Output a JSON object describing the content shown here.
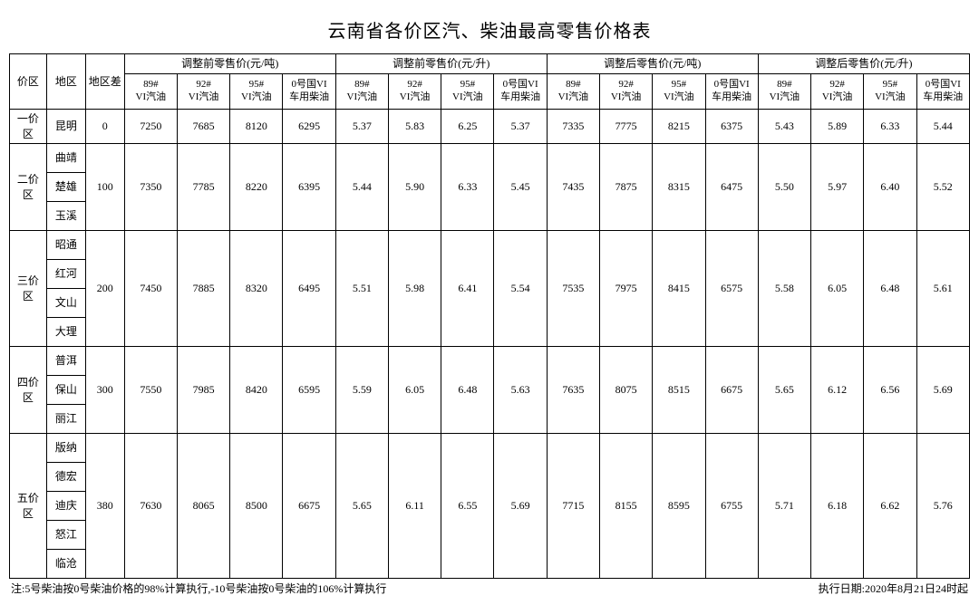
{
  "title": "云南省各价区汽、柴油最高零售价格表",
  "head": {
    "zone": "价区",
    "region": "地区",
    "diff": "地区差",
    "group_before_ton": "调整前零售价(元/吨)",
    "group_before_lit": "调整前零售价(元/升)",
    "group_after_ton": "调整后零售价(元/吨)",
    "group_after_lit": "调整后零售价(元/升)",
    "sub89": "89#\nVI汽油",
    "sub92": "92#\nVI汽油",
    "sub95": "95#\nVI汽油",
    "sub0": "0号国VI\n车用柴油"
  },
  "zones": [
    {
      "name": "一价区",
      "regions": [
        "昆明"
      ],
      "diff": "0",
      "vals": [
        "7250",
        "7685",
        "8120",
        "6295",
        "5.37",
        "5.83",
        "6.25",
        "5.37",
        "7335",
        "7775",
        "8215",
        "6375",
        "5.43",
        "5.89",
        "6.33",
        "5.44"
      ]
    },
    {
      "name": "二价区",
      "regions": [
        "曲靖",
        "楚雄",
        "玉溪"
      ],
      "diff": "100",
      "vals": [
        "7350",
        "7785",
        "8220",
        "6395",
        "5.44",
        "5.90",
        "6.33",
        "5.45",
        "7435",
        "7875",
        "8315",
        "6475",
        "5.50",
        "5.97",
        "6.40",
        "5.52"
      ]
    },
    {
      "name": "三价区",
      "regions": [
        "昭通",
        "红河",
        "文山",
        "大理"
      ],
      "diff": "200",
      "vals": [
        "7450",
        "7885",
        "8320",
        "6495",
        "5.51",
        "5.98",
        "6.41",
        "5.54",
        "7535",
        "7975",
        "8415",
        "6575",
        "5.58",
        "6.05",
        "6.48",
        "5.61"
      ]
    },
    {
      "name": "四价区",
      "regions": [
        "普洱",
        "保山",
        "丽江"
      ],
      "diff": "300",
      "vals": [
        "7550",
        "7985",
        "8420",
        "6595",
        "5.59",
        "6.05",
        "6.48",
        "5.63",
        "7635",
        "8075",
        "8515",
        "6675",
        "5.65",
        "6.12",
        "6.56",
        "5.69"
      ]
    },
    {
      "name": "五价区",
      "regions": [
        "版纳",
        "德宏",
        "迪庆",
        "怒江",
        "临沧"
      ],
      "diff": "380",
      "vals": [
        "7630",
        "8065",
        "8500",
        "6675",
        "5.65",
        "6.11",
        "6.55",
        "5.69",
        "7715",
        "8155",
        "8595",
        "6755",
        "5.71",
        "6.18",
        "6.62",
        "5.76"
      ]
    }
  ],
  "footnote_left": "注:5号柴油按0号柴油价格的98%计算执行,-10号柴油按0号柴油的106%计算执行",
  "footnote_right": "执行日期:2020年8月21日24时起"
}
